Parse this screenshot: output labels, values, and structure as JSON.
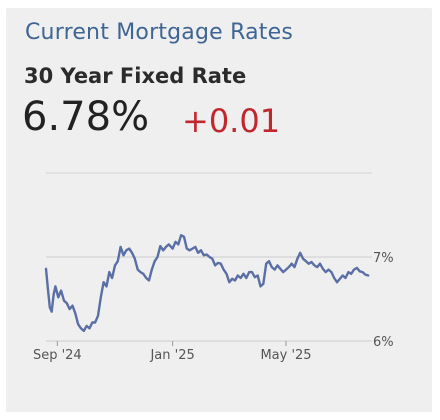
{
  "card": {
    "title": "Current Mortgage Rates",
    "rate_label": "30 Year Fixed Rate",
    "rate_value": "6.78%",
    "rate_change": "+0.01"
  },
  "colors": {
    "title": "#3f6594",
    "change": "#c1272d",
    "line": "#5a6fa6",
    "background": "#efefef"
  },
  "chart_data": {
    "type": "line",
    "x_tick_labels": [
      "Sep '24",
      "Jan '25",
      "May '25"
    ],
    "x_ticks": [
      "2024-09-01",
      "2025-01-01",
      "2025-05-01"
    ],
    "y_tick_labels": [
      "7%",
      "6%"
    ],
    "y_ticks": [
      7.0,
      6.0
    ],
    "ylim": [
      6.0,
      8.0
    ],
    "xlim": [
      "2024-08-20",
      "2025-07-31"
    ],
    "grid": "horizontal",
    "series": [
      {
        "values": [
          [
            "2024-08-20",
            6.86
          ],
          [
            "2024-08-22",
            6.62
          ],
          [
            "2024-08-24",
            6.4
          ],
          [
            "2024-08-26",
            6.35
          ],
          [
            "2024-08-28",
            6.55
          ],
          [
            "2024-08-30",
            6.65
          ],
          [
            "2024-09-02",
            6.52
          ],
          [
            "2024-09-05",
            6.6
          ],
          [
            "2024-09-08",
            6.48
          ],
          [
            "2024-09-11",
            6.45
          ],
          [
            "2024-09-14",
            6.38
          ],
          [
            "2024-09-17",
            6.42
          ],
          [
            "2024-09-20",
            6.33
          ],
          [
            "2024-09-23",
            6.2
          ],
          [
            "2024-09-26",
            6.15
          ],
          [
            "2024-09-29",
            6.12
          ],
          [
            "2024-10-02",
            6.18
          ],
          [
            "2024-10-05",
            6.15
          ],
          [
            "2024-10-08",
            6.22
          ],
          [
            "2024-10-11",
            6.22
          ],
          [
            "2024-10-14",
            6.3
          ],
          [
            "2024-10-17",
            6.52
          ],
          [
            "2024-10-20",
            6.7
          ],
          [
            "2024-10-23",
            6.65
          ],
          [
            "2024-10-26",
            6.82
          ],
          [
            "2024-10-29",
            6.75
          ],
          [
            "2024-11-01",
            6.9
          ],
          [
            "2024-11-04",
            6.95
          ],
          [
            "2024-11-07",
            7.12
          ],
          [
            "2024-11-10",
            7.02
          ],
          [
            "2024-11-13",
            7.08
          ],
          [
            "2024-11-16",
            7.1
          ],
          [
            "2024-11-19",
            7.05
          ],
          [
            "2024-11-22",
            6.98
          ],
          [
            "2024-11-25",
            6.85
          ],
          [
            "2024-11-28",
            6.82
          ],
          [
            "2024-12-01",
            6.8
          ],
          [
            "2024-12-04",
            6.75
          ],
          [
            "2024-12-07",
            6.72
          ],
          [
            "2024-12-10",
            6.85
          ],
          [
            "2024-12-13",
            6.95
          ],
          [
            "2024-12-16",
            7.0
          ],
          [
            "2024-12-19",
            7.13
          ],
          [
            "2024-12-22",
            7.08
          ],
          [
            "2024-12-25",
            7.12
          ],
          [
            "2024-12-28",
            7.15
          ],
          [
            "2025-01-01",
            7.1
          ],
          [
            "2025-01-04",
            7.18
          ],
          [
            "2025-01-07",
            7.15
          ],
          [
            "2025-01-10",
            7.26
          ],
          [
            "2025-01-13",
            7.24
          ],
          [
            "2025-01-16",
            7.1
          ],
          [
            "2025-01-19",
            7.08
          ],
          [
            "2025-01-22",
            7.1
          ],
          [
            "2025-01-25",
            7.12
          ],
          [
            "2025-01-28",
            7.05
          ],
          [
            "2025-01-31",
            7.08
          ],
          [
            "2025-02-03",
            7.02
          ],
          [
            "2025-02-06",
            7.03
          ],
          [
            "2025-02-09",
            7.0
          ],
          [
            "2025-02-12",
            6.98
          ],
          [
            "2025-02-15",
            6.9
          ],
          [
            "2025-02-18",
            6.93
          ],
          [
            "2025-02-21",
            6.92
          ],
          [
            "2025-02-24",
            6.85
          ],
          [
            "2025-02-27",
            6.8
          ],
          [
            "2025-03-02",
            6.7
          ],
          [
            "2025-03-05",
            6.74
          ],
          [
            "2025-03-08",
            6.72
          ],
          [
            "2025-03-11",
            6.78
          ],
          [
            "2025-03-14",
            6.75
          ],
          [
            "2025-03-17",
            6.8
          ],
          [
            "2025-03-20",
            6.75
          ],
          [
            "2025-03-23",
            6.82
          ],
          [
            "2025-03-26",
            6.82
          ],
          [
            "2025-03-29",
            6.76
          ],
          [
            "2025-04-01",
            6.78
          ],
          [
            "2025-04-04",
            6.65
          ],
          [
            "2025-04-07",
            6.68
          ],
          [
            "2025-04-10",
            6.92
          ],
          [
            "2025-04-13",
            6.95
          ],
          [
            "2025-04-16",
            6.88
          ],
          [
            "2025-04-19",
            6.85
          ],
          [
            "2025-04-22",
            6.9
          ],
          [
            "2025-04-25",
            6.86
          ],
          [
            "2025-04-28",
            6.82
          ],
          [
            "2025-05-01",
            6.85
          ],
          [
            "2025-05-04",
            6.88
          ],
          [
            "2025-05-07",
            6.92
          ],
          [
            "2025-05-10",
            6.88
          ],
          [
            "2025-05-13",
            6.98
          ],
          [
            "2025-05-16",
            7.05
          ],
          [
            "2025-05-19",
            6.98
          ],
          [
            "2025-05-22",
            6.95
          ],
          [
            "2025-05-25",
            6.92
          ],
          [
            "2025-05-28",
            6.94
          ],
          [
            "2025-05-31",
            6.9
          ],
          [
            "2025-06-03",
            6.88
          ],
          [
            "2025-06-06",
            6.92
          ],
          [
            "2025-06-09",
            6.86
          ],
          [
            "2025-06-12",
            6.82
          ],
          [
            "2025-06-15",
            6.85
          ],
          [
            "2025-06-18",
            6.82
          ],
          [
            "2025-06-21",
            6.75
          ],
          [
            "2025-06-24",
            6.7
          ],
          [
            "2025-06-27",
            6.74
          ],
          [
            "2025-06-30",
            6.78
          ],
          [
            "2025-07-03",
            6.75
          ],
          [
            "2025-07-06",
            6.82
          ],
          [
            "2025-07-09",
            6.8
          ],
          [
            "2025-07-12",
            6.85
          ],
          [
            "2025-07-15",
            6.87
          ],
          [
            "2025-07-18",
            6.83
          ],
          [
            "2025-07-21",
            6.82
          ],
          [
            "2025-07-24",
            6.79
          ],
          [
            "2025-07-27",
            6.78
          ]
        ]
      }
    ]
  }
}
